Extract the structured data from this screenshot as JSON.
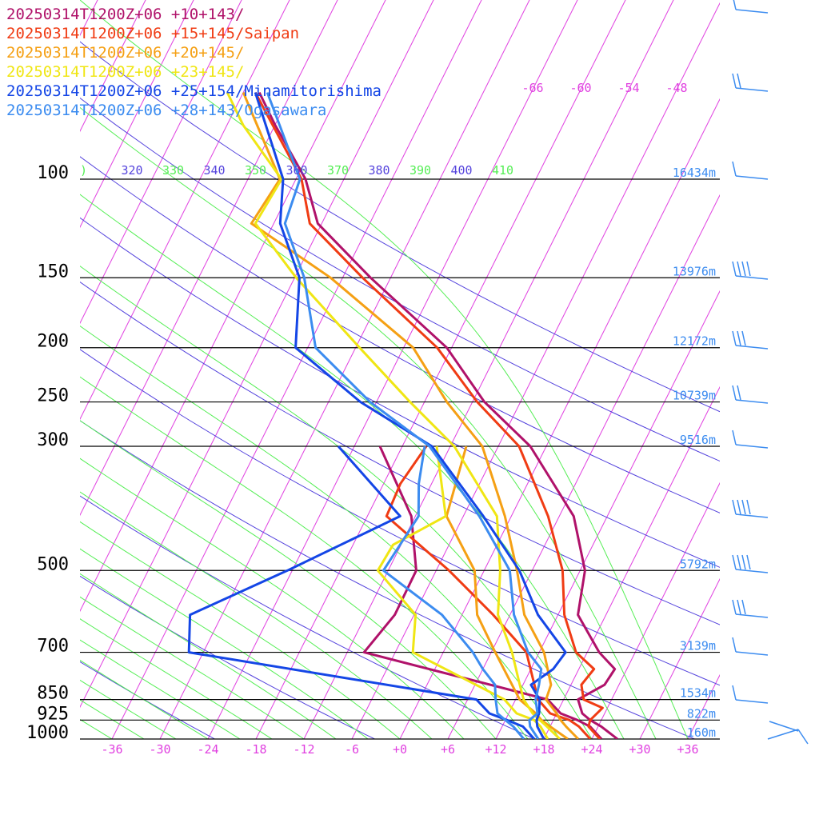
{
  "chart_data": {
    "type": "line",
    "title_lines": [
      {
        "text": "20250314T1200Z+06 +10+143/",
        "color": "#b0126a"
      },
      {
        "text": "20250314T1200Z+06 +15+145/Saipan",
        "color": "#f03c14"
      },
      {
        "text": "20250314T1200Z+06 +20+145/",
        "color": "#f5a014"
      },
      {
        "text": "20250314T1200Z+06 +23+145/",
        "color": "#f0e614"
      },
      {
        "text": "20250314T1200Z+06 +25+154/Minamitorishima",
        "color": "#1446e6"
      },
      {
        "text": "20250314T1200Z+06 +28+143/Ogasawara",
        "color": "#3c8cf0"
      }
    ],
    "xlabel": "",
    "ylabel": "",
    "x_ticks": [
      "-36",
      "-30",
      "-24",
      "-18",
      "-12",
      "-6",
      "+0",
      "+6",
      "+12",
      "+18",
      "+24",
      "+30",
      "+36"
    ],
    "x_range": [
      -40,
      40
    ],
    "pressure_levels": [
      {
        "p": 100,
        "label": "100",
        "height": "16434m"
      },
      {
        "p": 150,
        "label": "150",
        "height": "13976m"
      },
      {
        "p": 200,
        "label": "200",
        "height": "12172m"
      },
      {
        "p": 250,
        "label": "250",
        "height": "10739m"
      },
      {
        "p": 300,
        "label": "300",
        "height": "9516m"
      },
      {
        "p": 500,
        "label": "500",
        "height": "5792m"
      },
      {
        "p": 700,
        "label": "700",
        "height": "3139m"
      },
      {
        "p": 850,
        "label": "850",
        "height": "1534m"
      },
      {
        "p": 925,
        "label": "925",
        "height": "822m"
      },
      {
        "p": 1000,
        "label": "1000",
        "height": "160m"
      }
    ],
    "theta_labels": [
      ")",
      "320",
      "330",
      "340",
      "350",
      "360",
      "370",
      "380",
      "390",
      "400",
      "410"
    ],
    "theta_label_colors": [
      "#55ee55",
      "#5544dd",
      "#55ee55",
      "#5544dd",
      "#55ee55",
      "#5544dd",
      "#55ee55",
      "#5544dd",
      "#55ee55",
      "#5544dd",
      "#55ee55"
    ],
    "skew_labels": [
      "-66",
      "-60",
      "-54",
      "-48"
    ],
    "colors": {
      "isotherm": "#e040e0",
      "theta_dry": "#5544dd",
      "theta_moist": "#55ee55",
      "isobar": "#000000",
      "height_label": "#3c8cf0",
      "wind_barb": "#3c8cf0"
    },
    "series": [
      {
        "name": "20250314T1200Z+06 +10+143/",
        "color": "#b0126a",
        "temperature": [
          [
            1000,
            27.2
          ],
          [
            950,
            24.4
          ],
          [
            925,
            22.6
          ],
          [
            900,
            21.2
          ],
          [
            850,
            19.8
          ],
          [
            800,
            22.2
          ],
          [
            750,
            22.5
          ],
          [
            700,
            19.5
          ],
          [
            600,
            14.5
          ],
          [
            500,
            12.6
          ],
          [
            400,
            7.8
          ],
          [
            300,
            -2.0
          ],
          [
            250,
            -10.5
          ],
          [
            200,
            -18.6
          ],
          [
            150,
            -32.5
          ],
          [
            120,
            -42.5
          ],
          [
            100,
            -46.8
          ],
          [
            80,
            -54.0
          ],
          [
            70,
            -58.0
          ]
        ],
        "dewpoint": [
          [
            1000,
            25.2
          ],
          [
            950,
            23.0
          ],
          [
            925,
            21.0
          ],
          [
            900,
            18.5
          ],
          [
            850,
            16.0
          ],
          [
            700,
            -9.9
          ],
          [
            600,
            -8.4
          ],
          [
            500,
            -8.5
          ],
          [
            400,
            -12.5
          ],
          [
            300,
            -20.8
          ]
        ]
      },
      {
        "name": "20250314T1200Z+06 +15+145/Saipan",
        "color": "#f03c14",
        "temperature": [
          [
            1000,
            25.0
          ],
          [
            950,
            22.8
          ],
          [
            925,
            22.6
          ],
          [
            880,
            23.4
          ],
          [
            850,
            20.5
          ],
          [
            800,
            19.3
          ],
          [
            750,
            19.9
          ],
          [
            700,
            16.6
          ],
          [
            600,
            12.8
          ],
          [
            500,
            9.8
          ],
          [
            400,
            4.6
          ],
          [
            300,
            -3.4
          ],
          [
            250,
            -11.4
          ],
          [
            200,
            -19.8
          ],
          [
            150,
            -33.5
          ],
          [
            120,
            -43.5
          ],
          [
            100,
            -47.3
          ],
          [
            70,
            -58.5
          ]
        ],
        "dewpoint": [
          [
            1000,
            23.8
          ],
          [
            950,
            21.6
          ],
          [
            925,
            20.0
          ],
          [
            900,
            17.2
          ],
          [
            850,
            14.8
          ],
          [
            700,
            10.4
          ],
          [
            600,
            3.9
          ],
          [
            500,
            -4.4
          ],
          [
            400,
            -15.6
          ],
          [
            350,
            -15.9
          ],
          [
            300,
            -15.0
          ]
        ]
      },
      {
        "name": "20250314T1200Z+06 +20+145/",
        "color": "#f5a014",
        "temperature": [
          [
            1000,
            22.3
          ],
          [
            950,
            20.0
          ],
          [
            925,
            18.9
          ],
          [
            900,
            18.0
          ],
          [
            850,
            15.8
          ],
          [
            800,
            15.5
          ],
          [
            700,
            12.6
          ],
          [
            600,
            7.8
          ],
          [
            500,
            4.1
          ],
          [
            400,
            -0.8
          ],
          [
            300,
            -8.0
          ],
          [
            250,
            -15.2
          ],
          [
            200,
            -22.8
          ],
          [
            150,
            -37.5
          ],
          [
            120,
            -50.8
          ],
          [
            100,
            -50.0
          ],
          [
            70,
            -60.0
          ]
        ],
        "dewpoint": [
          [
            1000,
            21.0
          ],
          [
            950,
            18.0
          ],
          [
            925,
            16.5
          ],
          [
            900,
            15.4
          ],
          [
            850,
            12.5
          ],
          [
            700,
            6.5
          ],
          [
            600,
            1.9
          ],
          [
            500,
            -1.2
          ],
          [
            400,
            -8.1
          ],
          [
            300,
            -10.0
          ]
        ]
      },
      {
        "name": "20250314T1200Z+06 +23+145/",
        "color": "#f0e614",
        "temperature": [
          [
            1000,
            20.0
          ],
          [
            950,
            17.6
          ],
          [
            925,
            16.3
          ],
          [
            900,
            15.0
          ],
          [
            850,
            13.0
          ],
          [
            800,
            11.6
          ],
          [
            700,
            8.6
          ],
          [
            600,
            4.5
          ],
          [
            500,
            2.0
          ],
          [
            400,
            -1.8
          ],
          [
            300,
            -11.5
          ],
          [
            250,
            -19.8
          ],
          [
            200,
            -29.5
          ],
          [
            150,
            -41.8
          ],
          [
            120,
            -50.3
          ],
          [
            100,
            -49.8
          ],
          [
            80,
            -58.0
          ],
          [
            70,
            -62.0
          ]
        ],
        "dewpoint": [
          [
            1000,
            18.5
          ],
          [
            950,
            16.8
          ],
          [
            925,
            15.6
          ],
          [
            900,
            13.0
          ],
          [
            850,
            10.6
          ],
          [
            700,
            -3.8
          ],
          [
            600,
            -5.8
          ],
          [
            500,
            -13.3
          ],
          [
            450,
            -13.0
          ],
          [
            400,
            -8.2
          ],
          [
            300,
            -13.7
          ]
        ]
      },
      {
        "name": "20250314T1200Z+06 +25+154/Minamitorishima",
        "color": "#1446e6",
        "temperature": [
          [
            1000,
            18.0
          ],
          [
            950,
            16.4
          ],
          [
            925,
            15.9
          ],
          [
            900,
            15.8
          ],
          [
            850,
            15.0
          ],
          [
            800,
            13.0
          ],
          [
            750,
            14.8
          ],
          [
            700,
            15.3
          ],
          [
            600,
            9.5
          ],
          [
            500,
            4.4
          ],
          [
            400,
            -3.5
          ],
          [
            300,
            -14.3
          ],
          [
            250,
            -26.0
          ],
          [
            200,
            -37.5
          ],
          [
            150,
            -41.4
          ],
          [
            120,
            -47.2
          ],
          [
            100,
            -49.6
          ],
          [
            70,
            -58.5
          ]
        ],
        "dewpoint": [
          [
            1000,
            16.8
          ],
          [
            950,
            14.6
          ],
          [
            925,
            12.2
          ],
          [
            900,
            9.6
          ],
          [
            850,
            7.1
          ],
          [
            700,
            -31.8
          ],
          [
            600,
            -34.0
          ],
          [
            500,
            -24.6
          ],
          [
            400,
            -13.9
          ],
          [
            300,
            -26.0
          ]
        ]
      },
      {
        "name": "20250314T1200Z+06 +28+143/Ogasawara",
        "color": "#3c8cf0",
        "temperature": [
          [
            1000,
            17.3
          ],
          [
            950,
            15.5
          ],
          [
            925,
            15.0
          ],
          [
            900,
            15.6
          ],
          [
            850,
            14.5
          ],
          [
            800,
            14.0
          ],
          [
            750,
            13.3
          ],
          [
            700,
            10.6
          ],
          [
            600,
            6.5
          ],
          [
            500,
            3.2
          ],
          [
            400,
            -4.0
          ],
          [
            300,
            -14.6
          ],
          [
            250,
            -24.8
          ],
          [
            200,
            -35.0
          ],
          [
            150,
            -40.8
          ],
          [
            120,
            -46.6
          ],
          [
            100,
            -47.5
          ],
          [
            70,
            -57.0
          ]
        ],
        "dewpoint": [
          [
            1000,
            15.5
          ],
          [
            950,
            13.4
          ],
          [
            925,
            12.0
          ],
          [
            900,
            10.6
          ],
          [
            850,
            9.5
          ],
          [
            800,
            8.5
          ],
          [
            750,
            6.0
          ],
          [
            700,
            3.7
          ],
          [
            600,
            -2.5
          ],
          [
            500,
            -12.6
          ],
          [
            400,
            -11.6
          ],
          [
            350,
            -13.6
          ],
          [
            300,
            -15.2
          ]
        ]
      }
    ],
    "grid": true
  }
}
